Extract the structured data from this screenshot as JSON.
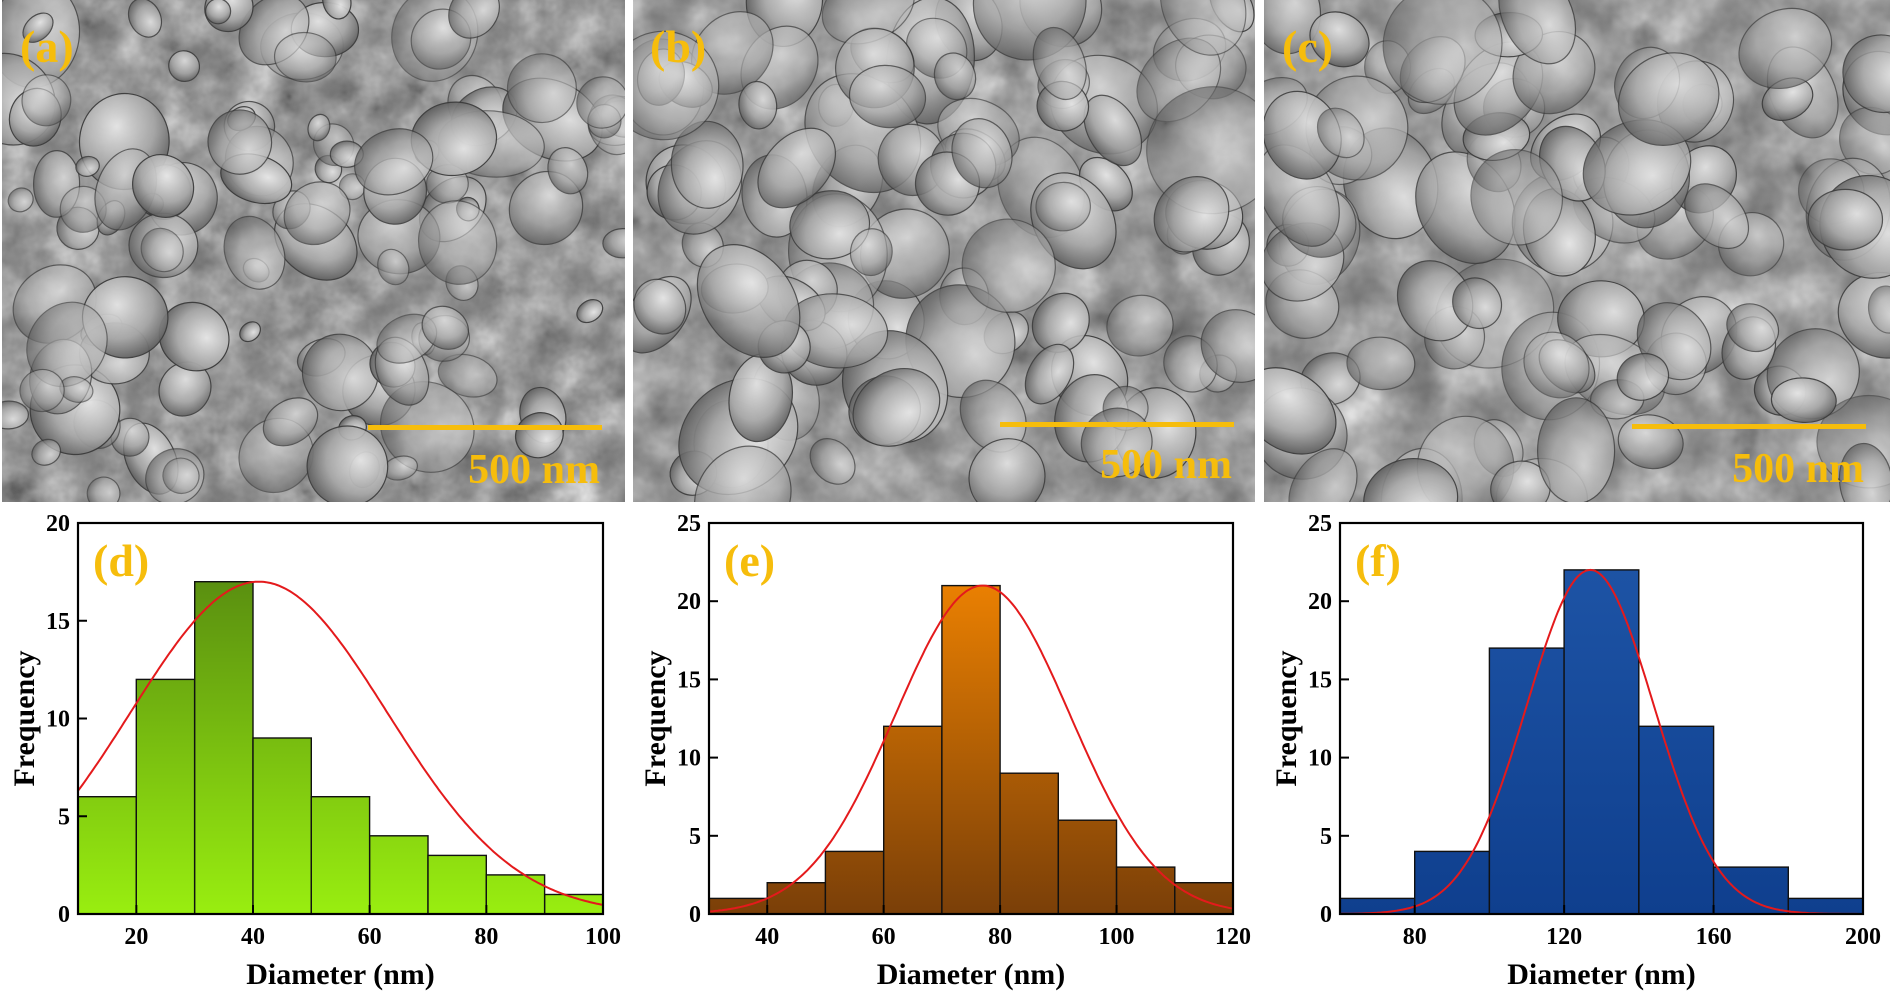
{
  "colors": {
    "label": "#f6bd0c",
    "scale_bar": "#f6bd0c",
    "fit_curve": "#e41a1c",
    "sem_background": "#6e6e6e"
  },
  "sem_panels": [
    {
      "label": "(a)",
      "scale_bar": "500 nm"
    },
    {
      "label": "(b)",
      "scale_bar": "500 nm"
    },
    {
      "label": "(c)",
      "scale_bar": "500 nm"
    }
  ],
  "chart_data": [
    {
      "type": "bar",
      "panel_label": "(d)",
      "xlabel": "Diameter (nm)",
      "ylabel": "Frequency",
      "xlim": [
        10,
        100
      ],
      "ylim": [
        0,
        20
      ],
      "xticks": [
        20,
        40,
        60,
        80,
        100
      ],
      "yticks": [
        0,
        5,
        10,
        15,
        20
      ],
      "bin_edges": [
        10,
        20,
        30,
        40,
        50,
        60,
        70,
        80,
        90,
        100
      ],
      "values": [
        6,
        12,
        17,
        9,
        6,
        4,
        3,
        2,
        1
      ],
      "fit": {
        "type": "gaussian",
        "center": 41,
        "sigma": 22,
        "amplitude": 17
      },
      "fill_top": "#4f7f10",
      "fill_bottom": "#99ee10"
    },
    {
      "type": "bar",
      "panel_label": "(e)",
      "xlabel": "Diameter (nm)",
      "ylabel": "Frequency",
      "xlim": [
        30,
        120
      ],
      "ylim": [
        0,
        25
      ],
      "xticks": [
        40,
        60,
        80,
        100,
        120
      ],
      "yticks": [
        0,
        5,
        10,
        15,
        20,
        25
      ],
      "bin_edges": [
        30,
        40,
        50,
        60,
        70,
        80,
        90,
        100,
        110,
        120
      ],
      "values": [
        1,
        2,
        4,
        12,
        21,
        9,
        6,
        3,
        2
      ],
      "fit": {
        "type": "gaussian",
        "center": 77,
        "sigma": 15,
        "amplitude": 21
      },
      "fill_top": "#ff8c00",
      "fill_bottom": "#7a3f08"
    },
    {
      "type": "bar",
      "panel_label": "(f)",
      "xlabel": "Diameter (nm)",
      "ylabel": "Frequency",
      "xlim": [
        60,
        200
      ],
      "ylim": [
        0,
        25
      ],
      "xticks": [
        80,
        120,
        160,
        200
      ],
      "yticks": [
        0,
        5,
        10,
        15,
        20,
        25
      ],
      "bin_edges": [
        60,
        80,
        100,
        120,
        140,
        160,
        180,
        200
      ],
      "values": [
        1,
        4,
        17,
        22,
        12,
        3,
        1
      ],
      "fit": {
        "type": "gaussian",
        "center": 127,
        "sigma": 17,
        "amplitude": 22
      },
      "fill_top": "#1f56a8",
      "fill_bottom": "#0f3f8e"
    }
  ]
}
